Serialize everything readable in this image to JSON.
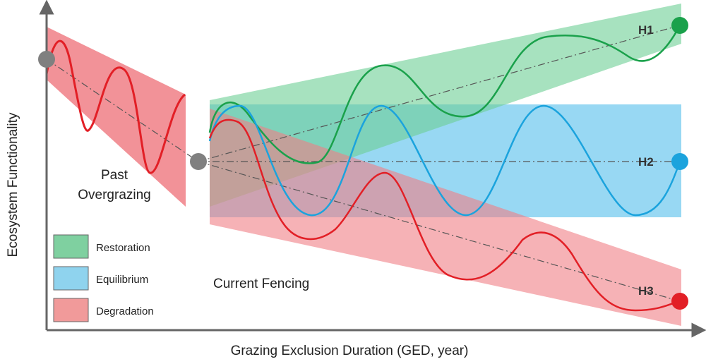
{
  "axes": {
    "x_label": "Grazing Exclusion Duration (GED, year)",
    "y_label": "Ecosystem Functionality"
  },
  "phases": {
    "past": [
      "Past",
      "Overgrazing"
    ],
    "current": "Current Fencing"
  },
  "hypotheses": {
    "h1": "H1",
    "h2": "H2",
    "h3": "H3"
  },
  "legend": [
    {
      "label": "Restoration",
      "color": "#7fd0a0"
    },
    {
      "label": "Equilibrium",
      "color": "#8fd3ee"
    },
    {
      "label": "Degradation",
      "color": "#f19a9a"
    }
  ],
  "colors": {
    "restoration_band": "#6ccf95",
    "equilibrium_band": "#6cc8ee",
    "degradation_band": "#f07f86",
    "restoration_line": "#1aa14b",
    "equilibrium_line": "#1ba3dd",
    "degradation_line": "#e21f26",
    "start_node": "#808080"
  }
}
